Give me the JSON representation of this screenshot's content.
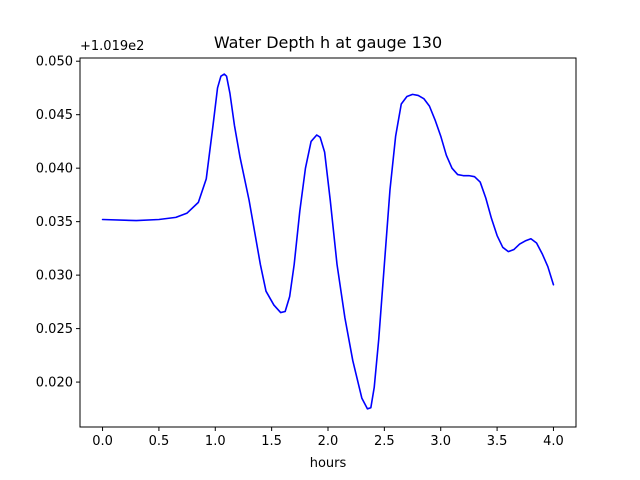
{
  "chart_data": {
    "type": "line",
    "title": "Water Depth h at gauge 130",
    "xlabel": "hours",
    "ylabel": "",
    "y_offset_label": "+1.019e2",
    "xlim": [
      -0.2,
      4.2
    ],
    "ylim": [
      0.0158,
      0.0503
    ],
    "x_ticks": [
      0.0,
      0.5,
      1.0,
      1.5,
      2.0,
      2.5,
      3.0,
      3.5,
      4.0
    ],
    "x_tick_labels": [
      "0.0",
      "0.5",
      "1.0",
      "1.5",
      "2.0",
      "2.5",
      "3.0",
      "3.5",
      "4.0"
    ],
    "y_ticks": [
      0.02,
      0.025,
      0.03,
      0.035,
      0.04,
      0.045,
      0.05
    ],
    "y_tick_labels": [
      "0.020",
      "0.025",
      "0.030",
      "0.035",
      "0.040",
      "0.045",
      "0.050"
    ],
    "grid": false,
    "series": [
      {
        "color": "#0000ff",
        "x": [
          0.0,
          0.3,
          0.5,
          0.65,
          0.75,
          0.85,
          0.92,
          0.98,
          1.02,
          1.05,
          1.08,
          1.1,
          1.13,
          1.17,
          1.22,
          1.3,
          1.4,
          1.45,
          1.52,
          1.58,
          1.62,
          1.66,
          1.7,
          1.75,
          1.8,
          1.85,
          1.9,
          1.93,
          1.97,
          2.02,
          2.08,
          2.15,
          2.22,
          2.3,
          2.35,
          2.38,
          2.41,
          2.45,
          2.5,
          2.55,
          2.6,
          2.65,
          2.7,
          2.75,
          2.8,
          2.85,
          2.9,
          2.95,
          3.0,
          3.05,
          3.1,
          3.15,
          3.2,
          3.25,
          3.3,
          3.35,
          3.4,
          3.45,
          3.5,
          3.55,
          3.6,
          3.65,
          3.7,
          3.75,
          3.8,
          3.85,
          3.9,
          3.95,
          4.0
        ],
        "y": [
          0.0352,
          0.0351,
          0.0352,
          0.0354,
          0.0358,
          0.0368,
          0.039,
          0.044,
          0.0475,
          0.0486,
          0.0488,
          0.0486,
          0.047,
          0.044,
          0.041,
          0.037,
          0.031,
          0.0285,
          0.0272,
          0.0265,
          0.0266,
          0.028,
          0.031,
          0.036,
          0.04,
          0.0425,
          0.0431,
          0.0429,
          0.0415,
          0.037,
          0.031,
          0.026,
          0.022,
          0.0185,
          0.0175,
          0.0176,
          0.0195,
          0.024,
          0.031,
          0.038,
          0.043,
          0.046,
          0.0467,
          0.0469,
          0.0468,
          0.0465,
          0.0458,
          0.0445,
          0.043,
          0.0412,
          0.04,
          0.0394,
          0.0393,
          0.0393,
          0.0392,
          0.0387,
          0.0372,
          0.0353,
          0.0337,
          0.0326,
          0.0322,
          0.0324,
          0.0329,
          0.0332,
          0.0334,
          0.033,
          0.032,
          0.0308,
          0.0291
        ]
      }
    ]
  }
}
